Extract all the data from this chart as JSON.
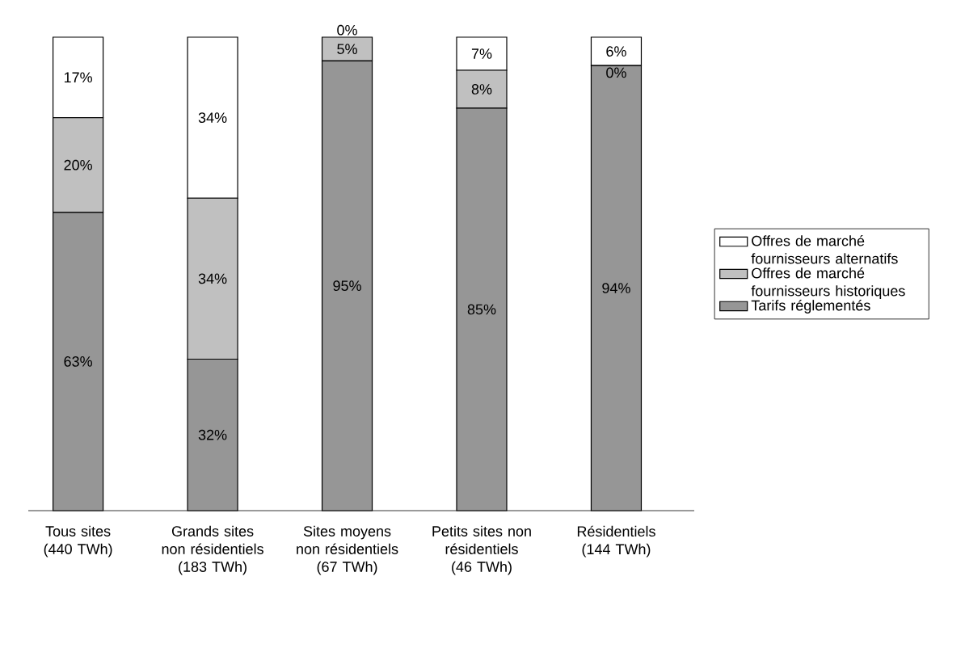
{
  "chart_data": {
    "type": "bar",
    "stacked": true,
    "legend": "right",
    "categories": [
      "Tous sites (440 TWh)",
      "Grands sites non résidentiels (183 TWh)",
      "Sites moyens non résidentiels (67 TWh)",
      "Petits sites non résidentiels (46 TWh)",
      "Résidentiels (144 TWh)"
    ],
    "series": [
      {
        "name": "Tarifs réglementés",
        "color": "#969696",
        "values": [
          63,
          32,
          95,
          85,
          94
        ],
        "value_labels": [
          "63%",
          "32%",
          "95%",
          "85%",
          "94%"
        ]
      },
      {
        "name": "Offres de marché fournisseurs historiques",
        "color": "#c0c0c0",
        "values": [
          20,
          34,
          5,
          8,
          0
        ],
        "value_labels": [
          "20%",
          "34%",
          "5%",
          "8%",
          "0%"
        ]
      },
      {
        "name": "Offres de marché fournisseurs alternatifs",
        "color": "#ffffff",
        "values": [
          17,
          34,
          0,
          7,
          6
        ],
        "value_labels": [
          "17%",
          "34%",
          "0%",
          "7%",
          "6%"
        ]
      }
    ]
  }
}
